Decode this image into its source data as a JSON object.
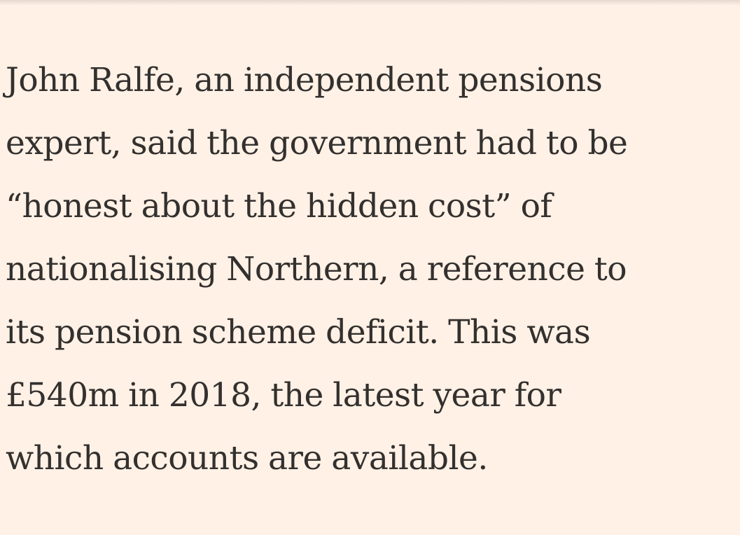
{
  "article": {
    "paragraph_lines": [
      "John Ralfe, an independent pensions",
      "expert, said the government had to be",
      "“honest about the hidden cost” of",
      "nationalising Northern, a reference to",
      "its pension scheme deficit. This was",
      "£540m in 2018, the latest year for",
      "which accounts are available."
    ]
  }
}
